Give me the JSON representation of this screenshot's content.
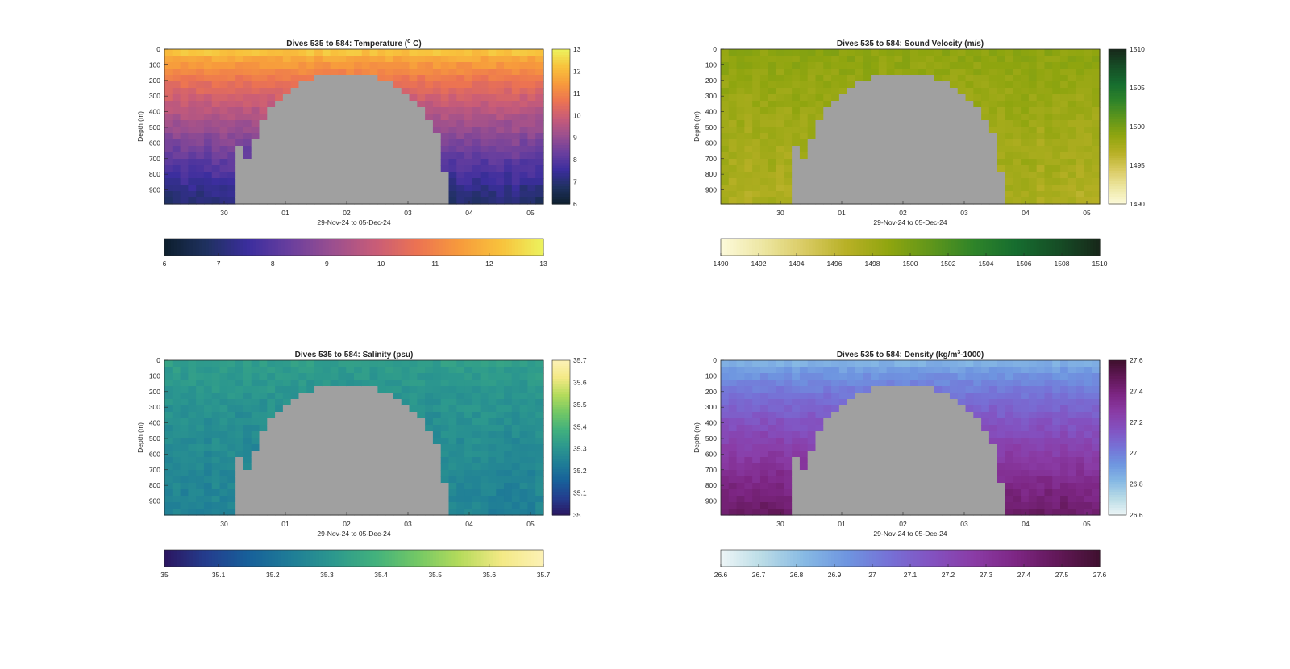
{
  "figure": {
    "background": "#ffffff",
    "mask_color": "#a0a0a0"
  },
  "chart_data": [
    {
      "type": "heatmap",
      "title": "Dives 535 to 584: Temperature (° C)",
      "title_parts": {
        "pre": "Dives 535 to 584: Temperature (",
        "sup": "o",
        "post": " C)"
      },
      "xlabel": "29-Nov-24 to 05-Dec-24",
      "ylabel": "Depth (m)",
      "x_ticks": [
        "30",
        "01",
        "02",
        "03",
        "04",
        "05"
      ],
      "y_ticks": [
        "0",
        "100",
        "200",
        "300",
        "400",
        "500",
        "600",
        "700",
        "800",
        "900"
      ],
      "ylim": [
        0,
        990
      ],
      "y_reversed": true,
      "colorbar": {
        "range": [
          6,
          13
        ],
        "ticks": [
          "6",
          "7",
          "8",
          "9",
          "10",
          "11",
          "12",
          "13"
        ],
        "colormap": [
          "#0d1f2d",
          "#1f3160",
          "#3c2e9e",
          "#6a3f9e",
          "#9b4f8f",
          "#c85c78",
          "#ec7352",
          "#f79a3c",
          "#f8c23c",
          "#ecf35e"
        ]
      },
      "field": {
        "surface": 12.2,
        "bottom": 7.0
      }
    },
    {
      "type": "heatmap",
      "title": "Dives 535 to 584: Sound Velocity (m/s)",
      "title_parts": {
        "pre": "Dives 535 to 584: Sound Velocity (m/s)",
        "sup": "",
        "post": ""
      },
      "xlabel": "29-Nov-24 to 05-Dec-24",
      "ylabel": "Depth (m)",
      "x_ticks": [
        "30",
        "01",
        "02",
        "03",
        "04",
        "05"
      ],
      "y_ticks": [
        "0",
        "100",
        "200",
        "300",
        "400",
        "500",
        "600",
        "700",
        "800",
        "900"
      ],
      "ylim": [
        0,
        990
      ],
      "y_reversed": true,
      "colorbar": {
        "range": [
          1490,
          1510
        ],
        "ticks": [
          "1490",
          "1492",
          "1494",
          "1496",
          "1498",
          "1500",
          "1502",
          "1504",
          "1506",
          "1508",
          "1510"
        ],
        "side_ticks": [
          "1490",
          "1495",
          "1500",
          "1505",
          "1510"
        ],
        "colormap": [
          "#fdfadb",
          "#ede6a2",
          "#d9cb62",
          "#b7b025",
          "#8fa50f",
          "#5f961b",
          "#2f8429",
          "#166d2f",
          "#164e26",
          "#17281a"
        ]
      },
      "field": {
        "surface": 1499.0,
        "bottom": 1497.3
      }
    },
    {
      "type": "heatmap",
      "title": "Dives 535 to 584: Salinity (psu)",
      "title_parts": {
        "pre": "Dives 535 to 584: Salinity (psu)",
        "sup": "",
        "post": ""
      },
      "xlabel": "29-Nov-24 to 05-Dec-24",
      "ylabel": "Depth (m)",
      "x_ticks": [
        "30",
        "01",
        "02",
        "03",
        "04",
        "05"
      ],
      "y_ticks": [
        "0",
        "100",
        "200",
        "300",
        "400",
        "500",
        "600",
        "700",
        "800",
        "900"
      ],
      "ylim": [
        0,
        990
      ],
      "y_reversed": true,
      "colorbar": {
        "range": [
          35,
          35.7
        ],
        "ticks": [
          "35",
          "35.1",
          "35.2",
          "35.3",
          "35.4",
          "35.5",
          "35.6",
          "35.7"
        ],
        "colormap": [
          "#2b1560",
          "#243d8e",
          "#17609a",
          "#1f7d97",
          "#2c988e",
          "#42b17d",
          "#73c865",
          "#b4db5b",
          "#f3e985",
          "#fcf1b5"
        ]
      },
      "field": {
        "surface": 35.33,
        "bottom": 35.24
      }
    },
    {
      "type": "heatmap",
      "title": "Dives 535 to 584: Density (kg/m³-1000)",
      "title_parts": {
        "pre": "Dives 535 to 584: Density (kg/m",
        "sup": "3",
        "post": "-1000)"
      },
      "xlabel": "29-Nov-24 to 05-Dec-24",
      "ylabel": "Depth (m)",
      "x_ticks": [
        "30",
        "01",
        "02",
        "03",
        "04",
        "05"
      ],
      "y_ticks": [
        "0",
        "100",
        "200",
        "300",
        "400",
        "500",
        "600",
        "700",
        "800",
        "900"
      ],
      "ylim": [
        0,
        990
      ],
      "y_reversed": true,
      "colorbar": {
        "range": [
          26.6,
          27.6
        ],
        "ticks": [
          "26.6",
          "26.7",
          "26.8",
          "26.9",
          "27",
          "27.1",
          "27.2",
          "27.3",
          "27.4",
          "27.5",
          "27.6"
        ],
        "side_ticks": [
          "26.6",
          "26.8",
          "27",
          "27.2",
          "27.4",
          "27.6"
        ],
        "colormap": [
          "#eef6f7",
          "#b9dbe6",
          "#86b9e4",
          "#6e95e0",
          "#7671d6",
          "#8352c1",
          "#8a3ca6",
          "#7d2684",
          "#621858",
          "#40102f"
        ]
      },
      "field": {
        "surface": 26.85,
        "bottom": 27.45
      }
    }
  ]
}
